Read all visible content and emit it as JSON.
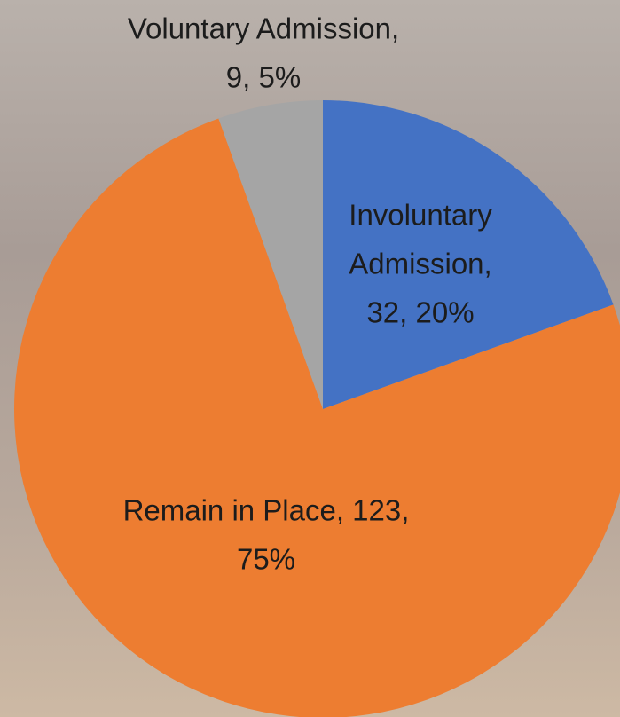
{
  "chart_data": {
    "type": "pie",
    "values": [
      32,
      123,
      9
    ],
    "value_labels": [
      [
        "Involuntary",
        "Admission,",
        "32, 20%"
      ],
      [
        "Remain in Place, 123,",
        "75%"
      ],
      [
        "Voluntary Admission,",
        "9, 5%"
      ]
    ],
    "colors": [
      "#4472c4",
      "#ed7d31",
      "#a5a5a5"
    ],
    "start_angle": 0,
    "direction": "clockwise"
  }
}
